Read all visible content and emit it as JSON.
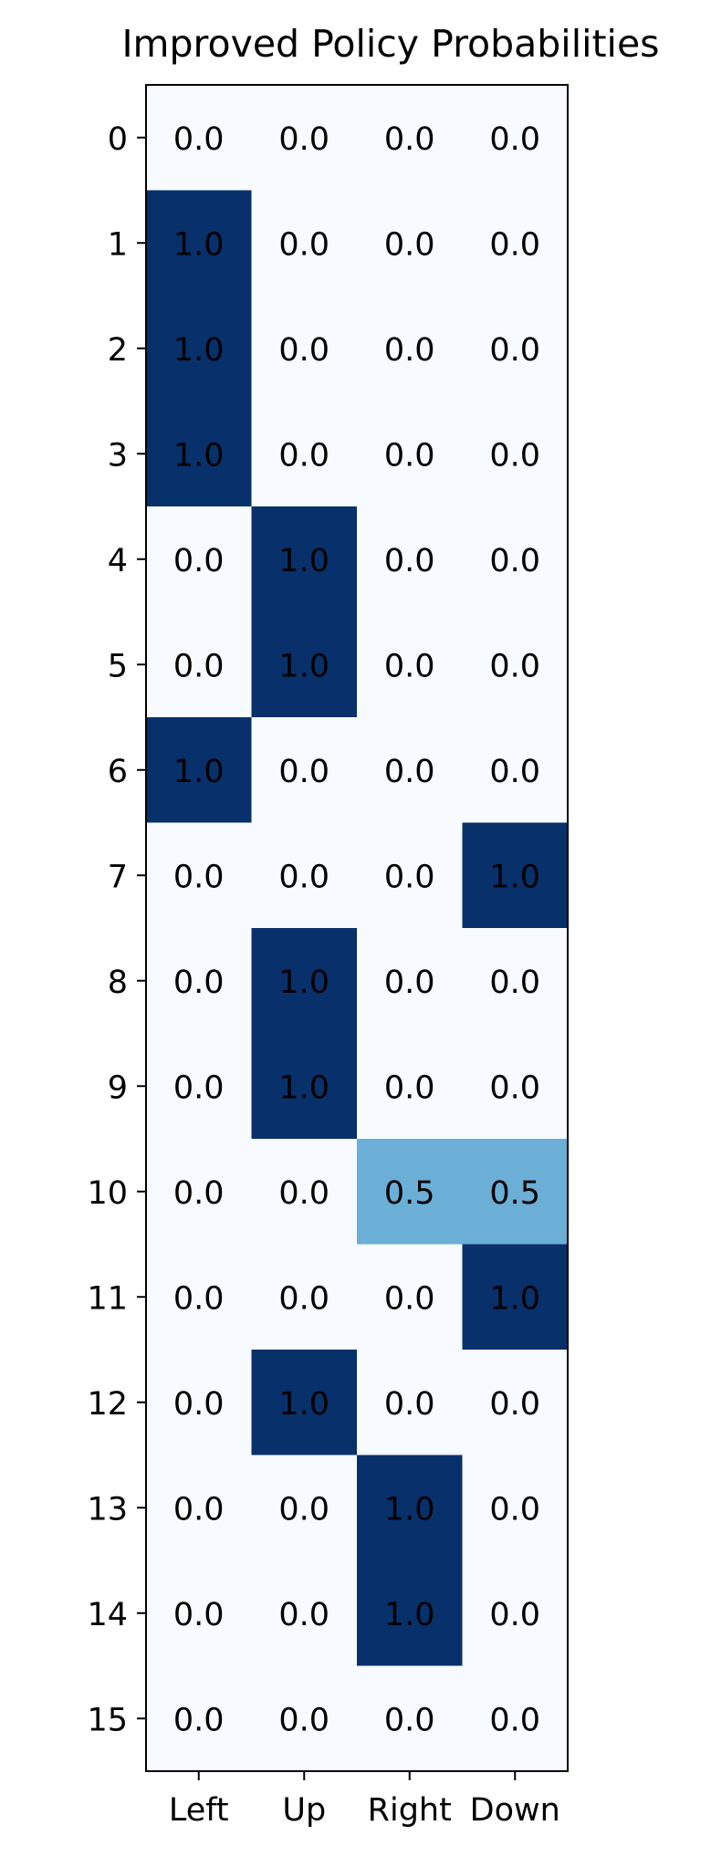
{
  "chart_data": {
    "type": "heatmap",
    "title": "Improved Policy Probabilities",
    "xlabel": "",
    "ylabel": "",
    "columns": [
      "Left",
      "Up",
      "Right",
      "Down"
    ],
    "rows": [
      "0",
      "1",
      "2",
      "3",
      "4",
      "5",
      "6",
      "7",
      "8",
      "9",
      "10",
      "11",
      "12",
      "13",
      "14",
      "15"
    ],
    "values": [
      [
        0.0,
        0.0,
        0.0,
        0.0
      ],
      [
        1.0,
        0.0,
        0.0,
        0.0
      ],
      [
        1.0,
        0.0,
        0.0,
        0.0
      ],
      [
        1.0,
        0.0,
        0.0,
        0.0
      ],
      [
        0.0,
        1.0,
        0.0,
        0.0
      ],
      [
        0.0,
        1.0,
        0.0,
        0.0
      ],
      [
        1.0,
        0.0,
        0.0,
        0.0
      ],
      [
        0.0,
        0.0,
        0.0,
        1.0
      ],
      [
        0.0,
        1.0,
        0.0,
        0.0
      ],
      [
        0.0,
        1.0,
        0.0,
        0.0
      ],
      [
        0.0,
        0.0,
        0.5,
        0.5
      ],
      [
        0.0,
        0.0,
        0.0,
        1.0
      ],
      [
        0.0,
        1.0,
        0.0,
        0.0
      ],
      [
        0.0,
        0.0,
        1.0,
        0.0
      ],
      [
        0.0,
        0.0,
        1.0,
        0.0
      ],
      [
        0.0,
        0.0,
        0.0,
        0.0
      ]
    ],
    "value_range": [
      0,
      1
    ],
    "colormap": "Blues",
    "colors": {
      "low": "#f7fbff",
      "mid": "#6baed6",
      "high": "#08306b"
    },
    "grid": false,
    "legend": "none"
  }
}
